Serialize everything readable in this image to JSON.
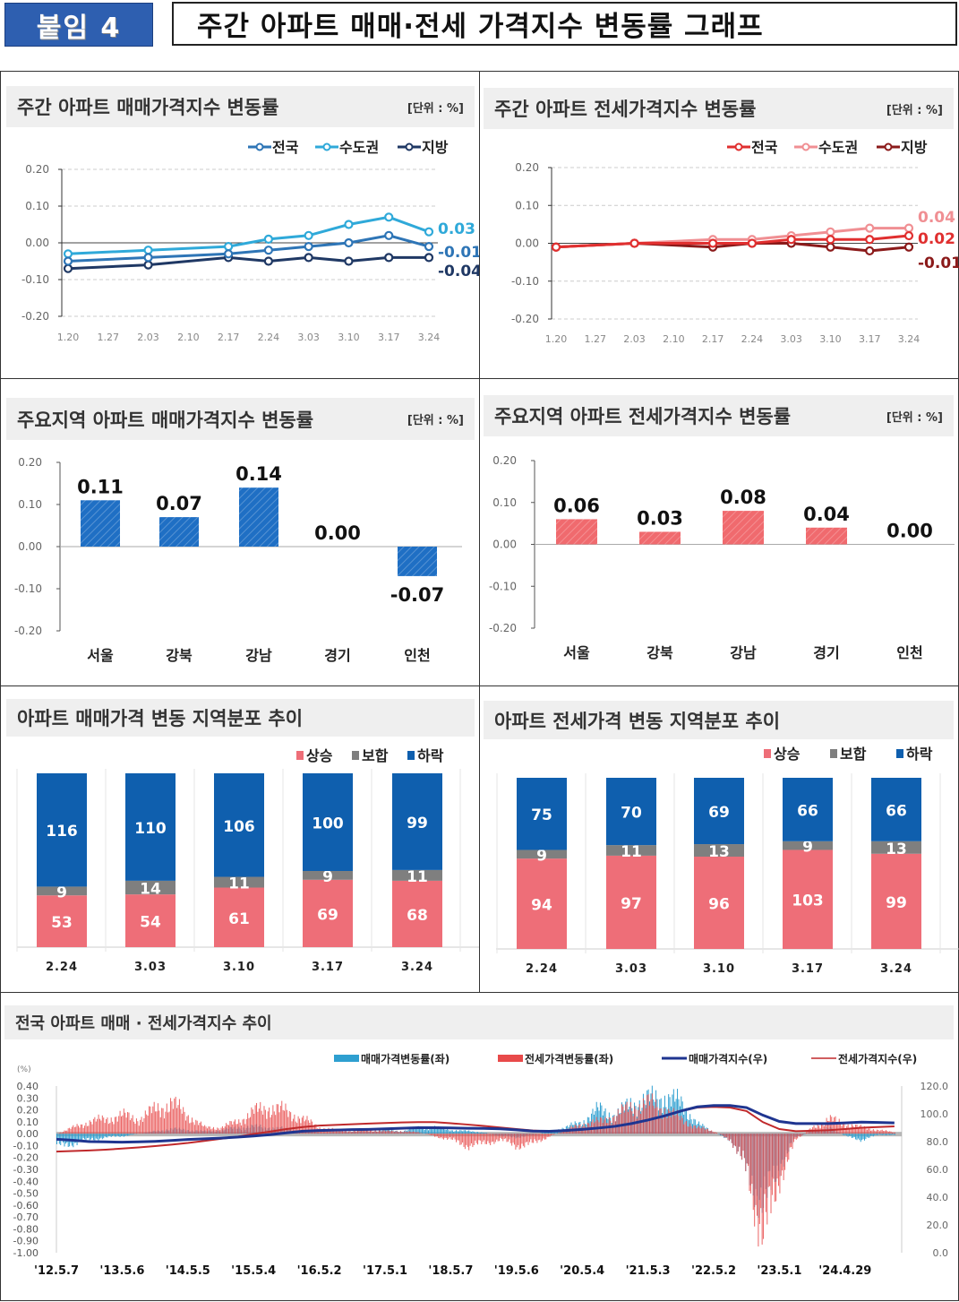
{
  "header": {
    "badge": "붙임 4",
    "title": "주간 아파트 매매·전세 가격지수 변동률 그래프"
  },
  "chart_data": [
    {
      "type": "line",
      "title": "주간 아파트 매매가격지수 변동률",
      "unit_label": "[단위 : %]",
      "categories": [
        "1.20",
        "1.27",
        "2.03",
        "2.10",
        "2.17",
        "2.24",
        "3.03",
        "3.10",
        "3.17",
        "3.24"
      ],
      "ylim": [
        -0.2,
        0.2
      ],
      "yticks": [
        "0.20",
        "0.10",
        "0.00",
        "-0.10",
        "-0.20"
      ],
      "grid": true,
      "legend": "top-right",
      "series": [
        {
          "name": "전국",
          "color": "#2e75b6",
          "values": [
            -0.05,
            null,
            -0.04,
            null,
            -0.03,
            -0.02,
            -0.01,
            0.0,
            0.02,
            -0.01
          ],
          "end_label": "-0.01"
        },
        {
          "name": "수도권",
          "color": "#2fa9d9",
          "values": [
            -0.03,
            null,
            -0.02,
            null,
            -0.01,
            0.01,
            0.02,
            0.05,
            0.07,
            0.03
          ],
          "end_label": "0.03"
        },
        {
          "name": "지방",
          "color": "#1f3864",
          "values": [
            -0.07,
            null,
            -0.06,
            null,
            -0.04,
            -0.05,
            -0.04,
            -0.05,
            -0.04,
            -0.04
          ],
          "end_label": "-0.04"
        }
      ]
    },
    {
      "type": "line",
      "title": "주간 아파트 전세가격지수 변동률",
      "unit_label": "[단위 : %]",
      "categories": [
        "1.20",
        "1.27",
        "2.03",
        "2.10",
        "2.17",
        "2.24",
        "3.03",
        "3.10",
        "3.17",
        "3.24"
      ],
      "ylim": [
        -0.2,
        0.2
      ],
      "yticks": [
        "0.20",
        "0.10",
        "0.00",
        "-0.10",
        "-0.20"
      ],
      "grid": true,
      "legend": "top-right",
      "series": [
        {
          "name": "전국",
          "color": "#e02f2f",
          "values": [
            -0.01,
            null,
            0.0,
            null,
            0.0,
            0.0,
            0.01,
            0.01,
            0.01,
            0.02
          ],
          "end_label": "0.02"
        },
        {
          "name": "수도권",
          "color": "#f08f93",
          "values": [
            -0.01,
            null,
            0.0,
            null,
            0.01,
            0.01,
            0.02,
            0.03,
            0.04,
            0.04
          ],
          "end_label": "0.04"
        },
        {
          "name": "지방",
          "color": "#8b1a1a",
          "values": [
            -0.01,
            null,
            0.0,
            null,
            -0.01,
            0.0,
            0.0,
            -0.01,
            -0.02,
            -0.01
          ],
          "end_label": "-0.01"
        }
      ]
    },
    {
      "type": "bar",
      "title": "주요지역 아파트 매매가격지수 변동률",
      "unit_label": "[단위 : %]",
      "color": "#1f6fc4",
      "categories": [
        "서울",
        "강북",
        "강남",
        "경기",
        "인천"
      ],
      "values": [
        0.11,
        0.07,
        0.14,
        0.0,
        -0.07
      ],
      "labels": [
        "0.11",
        "0.07",
        "0.14",
        "0.00",
        "-0.07"
      ],
      "ylim": [
        -0.2,
        0.2
      ],
      "yticks": [
        "0.20",
        "0.10",
        "0.00",
        "-0.10",
        "-0.20"
      ]
    },
    {
      "type": "bar",
      "title": "주요지역 아파트 전세가격지수 변동률",
      "unit_label": "[단위 : %]",
      "color": "#f06a6e",
      "categories": [
        "서울",
        "강북",
        "강남",
        "경기",
        "인천"
      ],
      "values": [
        0.06,
        0.03,
        0.08,
        0.04,
        0.0
      ],
      "labels": [
        "0.06",
        "0.03",
        "0.08",
        "0.04",
        "0.00"
      ],
      "ylim": [
        -0.2,
        0.2
      ],
      "yticks": [
        "0.20",
        "0.10",
        "0.00",
        "-0.10",
        "-0.20"
      ]
    },
    {
      "type": "bar",
      "stacked": true,
      "title": "아파트 매매가격 변동 지역분포 추이",
      "legend": "top-right",
      "categories": [
        "2.24",
        "3.03",
        "3.10",
        "3.17",
        "3.24"
      ],
      "series": [
        {
          "name": "상승",
          "color": "#ee6e78",
          "values": [
            53,
            54,
            61,
            69,
            68
          ]
        },
        {
          "name": "보합",
          "color": "#7f7f7f",
          "values": [
            9,
            14,
            11,
            9,
            11
          ]
        },
        {
          "name": "하락",
          "color": "#0f5fae",
          "values": [
            116,
            110,
            106,
            100,
            99
          ]
        }
      ]
    },
    {
      "type": "bar",
      "stacked": true,
      "title": "아파트 전세가격 변동 지역분포 추이",
      "legend": "top-right",
      "categories": [
        "2.24",
        "3.03",
        "3.10",
        "3.17",
        "3.24"
      ],
      "series": [
        {
          "name": "상승",
          "color": "#ee6e78",
          "values": [
            94,
            97,
            96,
            103,
            99
          ]
        },
        {
          "name": "보합",
          "color": "#7f7f7f",
          "values": [
            9,
            11,
            13,
            9,
            13
          ]
        },
        {
          "name": "하락",
          "color": "#0f5fae",
          "values": [
            75,
            70,
            69,
            66,
            66
          ]
        }
      ]
    },
    {
      "type": "bar+line",
      "title": "전국 아파트 매매 · 전세가격지수 추이",
      "left_unit": "(%)",
      "legend": "top-right",
      "ylim_left": [
        -1.0,
        0.4
      ],
      "yticks_left": [
        "0.40",
        "0.30",
        "0.20",
        "0.10",
        "0.00",
        "-0.10",
        "-0.20",
        "-0.30",
        "-0.40",
        "-0.50",
        "-0.60",
        "-0.70",
        "-0.80",
        "-0.90",
        "-1.00"
      ],
      "ylim_right": [
        0,
        120
      ],
      "yticks_right": [
        "120.0",
        "100.0",
        "80.0",
        "60.0",
        "40.0",
        "20.0",
        "0.0"
      ],
      "xticks": [
        "'12.5.7",
        "'13.5.6",
        "'14.5.5",
        "'15.5.4",
        "'16.5.2",
        "'17.5.1",
        "'18.5.7",
        "'19.5.6",
        "'20.5.4",
        "'21.5.3",
        "'22.5.2",
        "'23.5.1",
        "'24.4.29"
      ],
      "x": [
        "2012-05",
        "2012-08",
        "2012-11",
        "2013-02",
        "2013-05",
        "2013-08",
        "2013-11",
        "2014-02",
        "2014-05",
        "2014-08",
        "2014-11",
        "2015-02",
        "2015-05",
        "2015-08",
        "2015-11",
        "2016-02",
        "2016-05",
        "2016-08",
        "2016-11",
        "2017-02",
        "2017-05",
        "2017-08",
        "2017-11",
        "2018-02",
        "2018-05",
        "2018-08",
        "2018-11",
        "2019-02",
        "2019-05",
        "2019-08",
        "2019-11",
        "2020-02",
        "2020-05",
        "2020-08",
        "2020-11",
        "2021-02",
        "2021-05",
        "2021-08",
        "2021-11",
        "2022-02",
        "2022-05",
        "2022-08",
        "2022-11",
        "2023-02",
        "2023-05",
        "2023-08",
        "2023-11",
        "2024-02",
        "2024-05",
        "2024-08",
        "2024-11",
        "2025-02"
      ],
      "series": [
        {
          "name": "매매가격변동률(좌)",
          "kind": "bar",
          "axis": "left",
          "color": "#2e9fd0",
          "values": [
            -0.1,
            -0.08,
            -0.05,
            -0.03,
            -0.02,
            0,
            0.02,
            0.04,
            0.03,
            0.02,
            0.03,
            0.05,
            0.06,
            0.05,
            0.04,
            0.02,
            0.01,
            0.01,
            0.02,
            0.02,
            0.03,
            0.02,
            0.05,
            0.05,
            0.03,
            0.02,
            0.01,
            -0.02,
            -0.03,
            -0.01,
            0.02,
            0.05,
            0.1,
            0.2,
            0.15,
            0.25,
            0.28,
            0.3,
            0.25,
            0.08,
            0.01,
            -0.05,
            -0.3,
            -0.6,
            -0.25,
            -0.03,
            0.02,
            0.05,
            -0.02,
            -0.05,
            -0.01,
            -0.01
          ]
        },
        {
          "name": "전세가격변동률(좌)",
          "kind": "bar",
          "axis": "left",
          "color": "#e84a4a",
          "values": [
            0,
            0.05,
            0.1,
            0.12,
            0.15,
            0.12,
            0.2,
            0.25,
            0.15,
            0.05,
            0.05,
            0.1,
            0.18,
            0.22,
            0.18,
            0.12,
            0.05,
            0.03,
            0.02,
            0.03,
            0.02,
            0.02,
            0.01,
            -0.02,
            -0.05,
            -0.1,
            -0.08,
            -0.05,
            -0.1,
            -0.08,
            -0.02,
            0.03,
            0.08,
            0.1,
            0.15,
            0.22,
            0.25,
            0.2,
            0.12,
            0.05,
            0.02,
            -0.05,
            -0.3,
            -0.85,
            -0.35,
            -0.05,
            0.05,
            0.12,
            0.08,
            0.05,
            0.03,
            0.01
          ]
        },
        {
          "name": "매매가격지수(우)",
          "kind": "line",
          "axis": "right",
          "color": "#1f3590",
          "values": [
            81.7,
            81,
            80,
            79.8,
            79.6,
            79.8,
            80.2,
            80.8,
            81.5,
            82,
            82.5,
            83.2,
            84,
            85,
            86.3,
            87.5,
            88,
            88.3,
            88.6,
            88.8,
            89.2,
            89.6,
            90,
            90,
            89.8,
            89.6,
            89.5,
            89.2,
            88.5,
            87.6,
            87.4,
            88,
            88.8,
            89.8,
            91,
            93,
            95.5,
            98.5,
            102,
            105,
            106,
            106,
            104.5,
            99,
            94.5,
            93,
            93,
            93,
            93.5,
            94,
            93.8,
            93.5
          ]
        },
        {
          "name": "전세가격지수(우)",
          "kind": "line",
          "axis": "right",
          "color": "#c0292b",
          "values": [
            72.8,
            73.2,
            73.6,
            74.2,
            75,
            75.8,
            76.8,
            77.8,
            79,
            80.5,
            82,
            83.5,
            85.5,
            87.2,
            89,
            90.5,
            91.5,
            92,
            92.5,
            93,
            93.4,
            93.8,
            94,
            94,
            93.2,
            92.3,
            91.3,
            90.2,
            89,
            88,
            87.4,
            87.8,
            88.6,
            89.8,
            91.3,
            93,
            95.5,
            98.5,
            102,
            104.5,
            105,
            104.5,
            102,
            94,
            89,
            87.5,
            87.8,
            88.2,
            89,
            90,
            90.5,
            91
          ]
        }
      ]
    }
  ]
}
